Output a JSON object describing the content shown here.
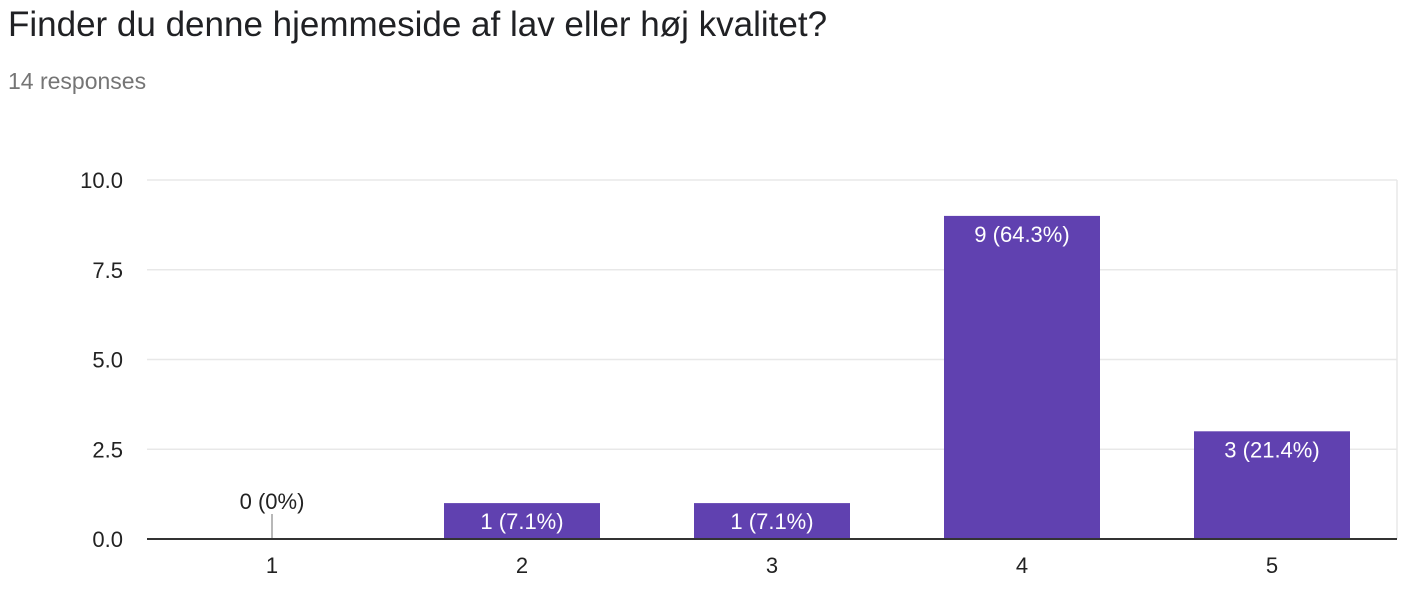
{
  "header": {
    "title": "Finder du denne hjemmeside af lav eller høj kvalitet?",
    "subtitle": "14 responses"
  },
  "colors": {
    "bar": "#6041b0",
    "grid": "#e8e8e8",
    "axis": "#333333",
    "label_inside": "#ffffff",
    "label_outside": "#222222"
  },
  "chart_data": {
    "type": "bar",
    "categories": [
      "1",
      "2",
      "3",
      "4",
      "5"
    ],
    "values": [
      0,
      1,
      1,
      9,
      3
    ],
    "data_labels": [
      "0 (0%)",
      "1 (7.1%)",
      "1 (7.1%)",
      "9 (64.3%)",
      "3 (21.4%)"
    ],
    "y_ticks": [
      "0.0",
      "2.5",
      "5.0",
      "7.5",
      "10.0"
    ],
    "ylim": [
      0,
      10
    ],
    "grid": true,
    "legend": "none"
  }
}
